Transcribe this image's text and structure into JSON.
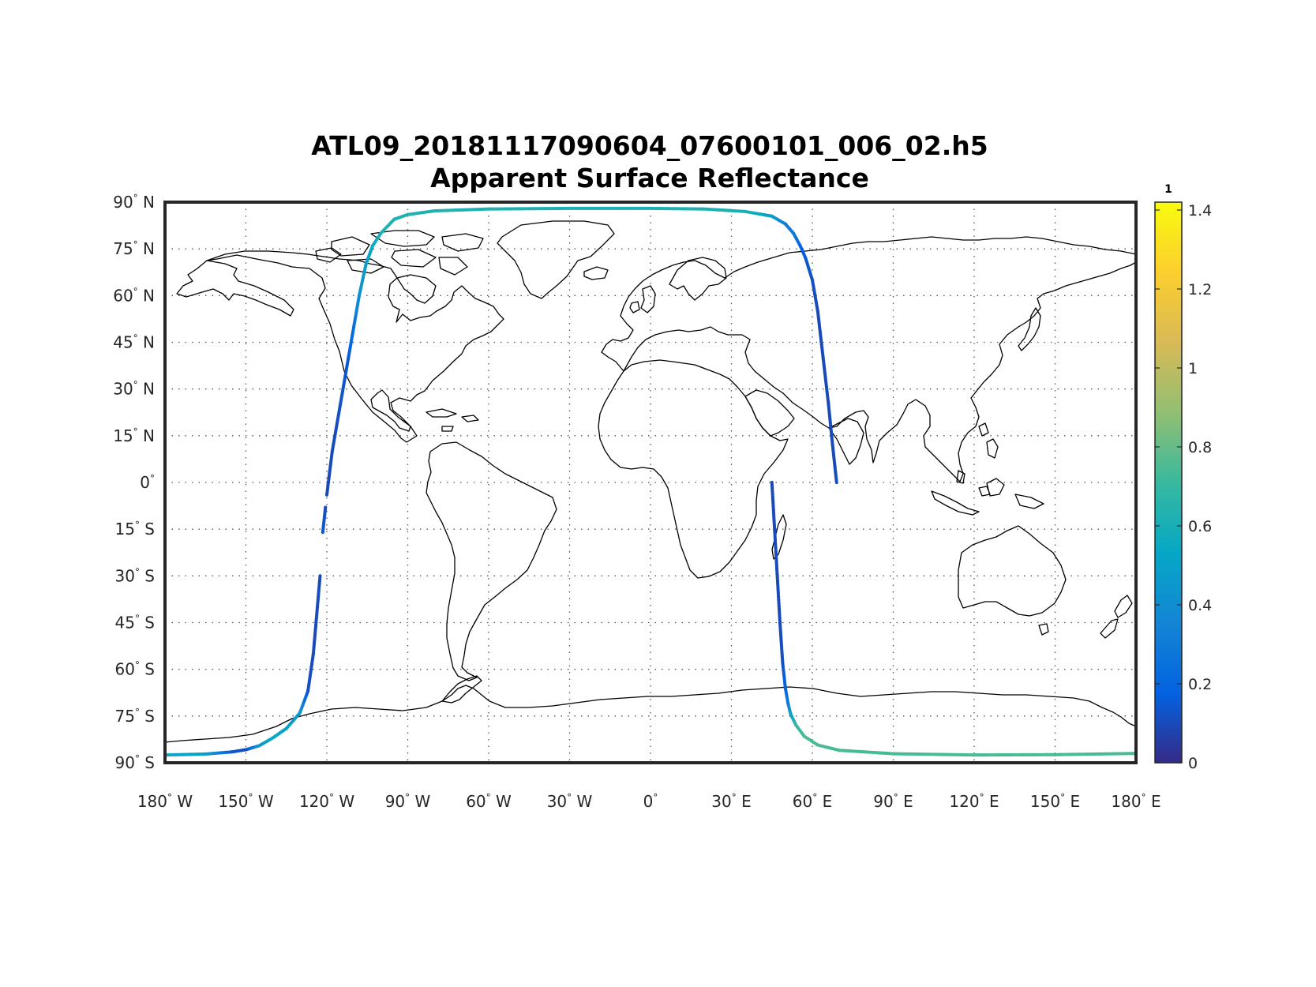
{
  "title_line1": "ATL09_20181117090604_07600101_006_02.h5",
  "title_line2": "Apparent Surface Reflectance",
  "chart_data": {
    "type": "map",
    "projection": "equirectangular",
    "title": "ATL09_20181117090604_07600101_006_02.h5",
    "subtitle": "Apparent Surface Reflectance",
    "xlim": [
      -180,
      180
    ],
    "ylim": [
      -90,
      90
    ],
    "grid": true,
    "x_ticks": [
      {
        "value": -180,
        "num": "180",
        "hem": "W"
      },
      {
        "value": -150,
        "num": "150",
        "hem": "W"
      },
      {
        "value": -120,
        "num": "120",
        "hem": "W"
      },
      {
        "value": -90,
        "num": "90",
        "hem": "W"
      },
      {
        "value": -60,
        "num": "60",
        "hem": "W"
      },
      {
        "value": -30,
        "num": "30",
        "hem": "W"
      },
      {
        "value": 0,
        "num": "0",
        "hem": ""
      },
      {
        "value": 30,
        "num": "30",
        "hem": "E"
      },
      {
        "value": 60,
        "num": "60",
        "hem": "E"
      },
      {
        "value": 90,
        "num": "90",
        "hem": "E"
      },
      {
        "value": 120,
        "num": "120",
        "hem": "E"
      },
      {
        "value": 150,
        "num": "150",
        "hem": "E"
      },
      {
        "value": 180,
        "num": "180",
        "hem": "E"
      }
    ],
    "y_ticks": [
      {
        "value": 90,
        "num": "90",
        "hem": "N"
      },
      {
        "value": 75,
        "num": "75",
        "hem": "N"
      },
      {
        "value": 60,
        "num": "60",
        "hem": "N"
      },
      {
        "value": 45,
        "num": "45",
        "hem": "N"
      },
      {
        "value": 30,
        "num": "30",
        "hem": "N"
      },
      {
        "value": 15,
        "num": "15",
        "hem": "N"
      },
      {
        "value": 0,
        "num": "0",
        "hem": ""
      },
      {
        "value": -15,
        "num": "15",
        "hem": "S"
      },
      {
        "value": -30,
        "num": "30",
        "hem": "S"
      },
      {
        "value": -45,
        "num": "45",
        "hem": "S"
      },
      {
        "value": -60,
        "num": "60",
        "hem": "S"
      },
      {
        "value": -75,
        "num": "75",
        "hem": "S"
      },
      {
        "value": -90,
        "num": "90",
        "hem": "S"
      }
    ],
    "colorbar": {
      "title": "1",
      "colormap": "parula",
      "range": [
        0,
        1.42
      ],
      "ticks": [
        {
          "value": 0,
          "label": "0"
        },
        {
          "value": 0.2,
          "label": "0.2"
        },
        {
          "value": 0.4,
          "label": "0.4"
        },
        {
          "value": 0.6,
          "label": "0.6"
        },
        {
          "value": 0.8,
          "label": "0.8"
        },
        {
          "value": 1.0,
          "label": "1"
        },
        {
          "value": 1.2,
          "label": "1.2"
        },
        {
          "value": 1.4,
          "label": "1.4"
        }
      ],
      "stops": [
        "#352a87",
        "#0363e1",
        "#1485d4",
        "#06a7c6",
        "#38b99e",
        "#92bf73",
        "#d9ba56",
        "#fcce2e",
        "#f9fb0e"
      ]
    },
    "tracks": [
      {
        "segments": [
          {
            "lon": [
              -180,
              -165,
              -155,
              -150,
              -145,
              -140,
              -135,
              -130,
              -127,
              -125,
              -123.5,
              -122.5
            ],
            "lat": [
              -87.5,
              -87.2,
              -86.5,
              -85.8,
              -84.5,
              -82.0,
              -79.0,
              -74.0,
              -67.0,
              -55.0,
              -40.0,
              -30.0
            ],
            "reflectance": [
              0.55,
              0.5,
              0.15,
              0.1,
              0.45,
              0.55,
              0.5,
              0.45,
              0.12,
              0.1,
              0.1,
              0.1
            ]
          },
          {
            "lon": [
              -121.5,
              -120.5
            ],
            "lat": [
              -16.0,
              -8.0
            ],
            "reflectance": [
              0.15,
              0.12
            ]
          },
          {
            "lon": [
              -120.0,
              -118.0,
              -115.0,
              -112.0,
              -110.0,
              -108.0,
              -105.5,
              -103.0,
              -100.0,
              -95.0,
              -90.0,
              -80.0,
              -60.0,
              -30.0,
              0.0,
              20.0,
              35.0,
              45.0,
              50.0,
              53.0,
              55.5
            ],
            "lat": [
              -4.0,
              10.0,
              25.0,
              40.0,
              50.0,
              60.0,
              70.0,
              76.0,
              80.0,
              84.5,
              86.0,
              87.2,
              87.8,
              88.0,
              88.0,
              87.8,
              87.0,
              85.5,
              83.0,
              80.0,
              76.0
            ],
            "reflectance": [
              0.1,
              0.1,
              0.12,
              0.15,
              0.25,
              0.4,
              0.5,
              0.55,
              0.62,
              0.62,
              0.62,
              0.63,
              0.62,
              0.62,
              0.62,
              0.62,
              0.61,
              0.5,
              0.3,
              0.3,
              0.2
            ]
          },
          {
            "lon": [
              55.5,
              57.5,
              60.0,
              62.0,
              64.0,
              66.0,
              67.5,
              69.0
            ],
            "lat": [
              76.0,
              72.0,
              65.0,
              55.0,
              40.0,
              25.0,
              12.0,
              0.0
            ],
            "reflectance": [
              0.2,
              0.15,
              0.12,
              0.1,
              0.1,
              0.1,
              0.1,
              0.1
            ]
          }
        ]
      },
      {
        "segments": [
          {
            "lon": [
              45.0,
              46.0,
              47.0,
              48.0,
              49.0,
              50.0,
              51.0,
              52.0,
              54.0,
              57.0,
              62.0,
              70.0,
              90.0,
              120.0,
              150.0,
              180.0
            ],
            "lat": [
              0.0,
              -15.0,
              -30.0,
              -45.0,
              -58.0,
              -66.0,
              -71.0,
              -74.5,
              -78.0,
              -81.5,
              -84.3,
              -86.0,
              -87.1,
              -87.5,
              -87.4,
              -87.0
            ],
            "reflectance": [
              0.1,
              0.1,
              0.1,
              0.1,
              0.12,
              0.2,
              0.3,
              0.5,
              0.7,
              0.75,
              0.75,
              0.74,
              0.74,
              0.74,
              0.74,
              0.75
            ]
          }
        ]
      }
    ]
  }
}
